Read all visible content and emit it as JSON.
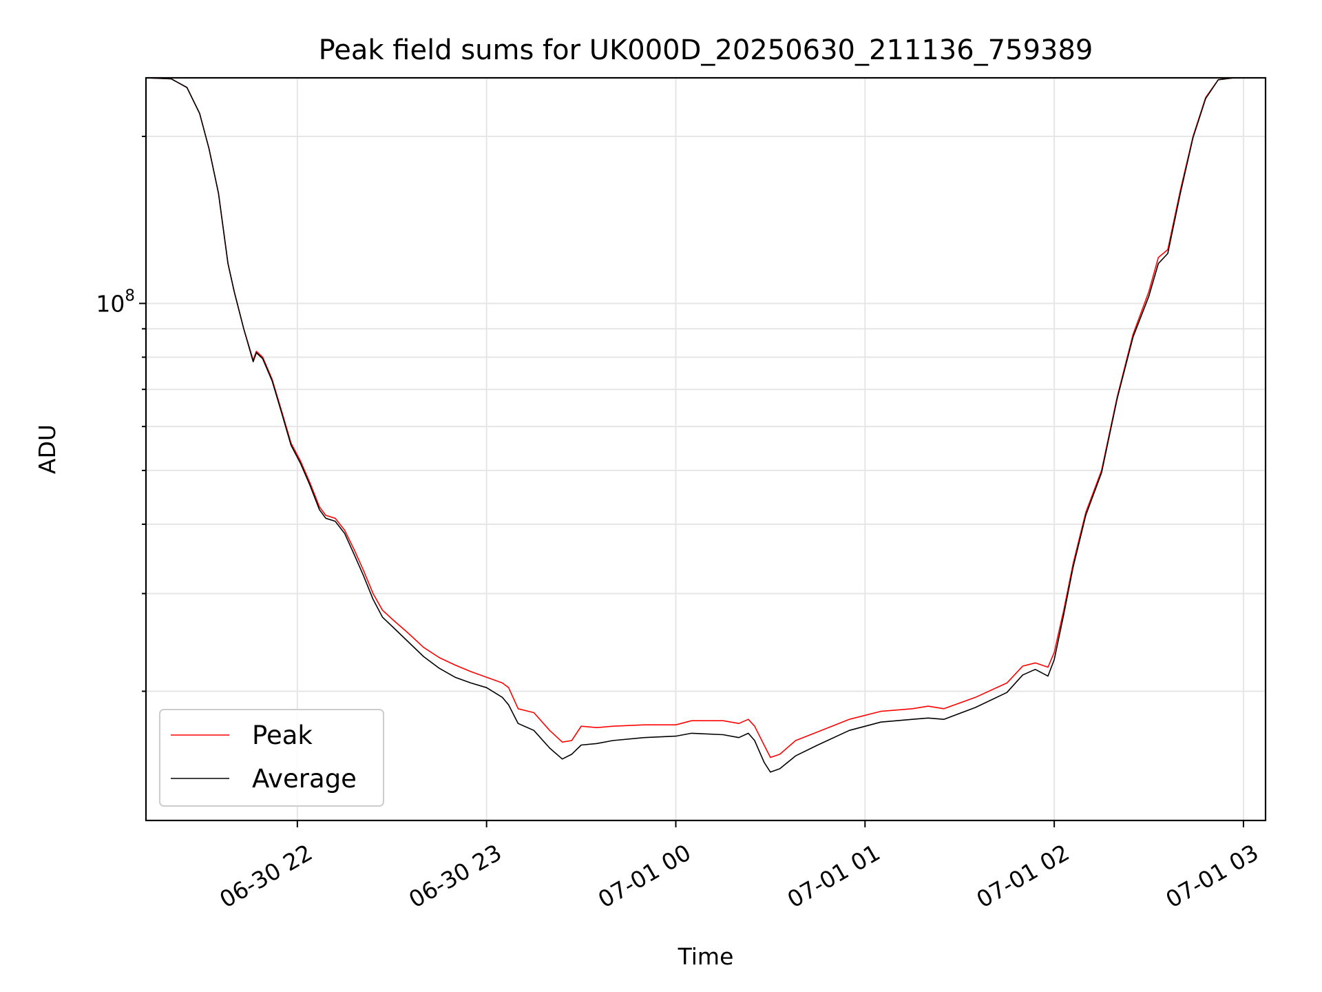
{
  "chart_data": {
    "type": "line",
    "title": "Peak field sums for UK000D_20250630_211136_759389",
    "xlabel": "Time",
    "ylabel": "ADU",
    "x_axis_type": "datetime",
    "xlim": [
      "2025-06-30 21:12",
      "2025-07-01 03:07"
    ],
    "ylim": [
      11700000,
      255000000
    ],
    "y_scale": "log",
    "x_ticks": [
      {
        "t": "2025-06-30 22:00",
        "label": "06-30 22"
      },
      {
        "t": "2025-06-30 23:00",
        "label": "06-30 23"
      },
      {
        "t": "2025-07-01 00:00",
        "label": "07-01 00"
      },
      {
        "t": "2025-07-01 01:00",
        "label": "07-01 01"
      },
      {
        "t": "2025-07-01 02:00",
        "label": "07-01 02"
      },
      {
        "t": "2025-07-01 03:00",
        "label": "07-01 03"
      }
    ],
    "y_major_ticks": [
      {
        "value": 100000000,
        "base": "10",
        "exp": "8"
      }
    ],
    "y_minor_ticks": [
      20000000,
      30000000,
      40000000,
      50000000,
      60000000,
      70000000,
      80000000,
      90000000,
      200000000
    ],
    "grid": true,
    "legend_position": "lower-left",
    "series": [
      {
        "name": "Peak",
        "color": "#ff0000",
        "points": [
          [
            "2025-06-30 21:12",
            255000000
          ],
          [
            "2025-06-30 21:20",
            254000000
          ],
          [
            "2025-06-30 21:25",
            245000000
          ],
          [
            "2025-06-30 21:29",
            220000000
          ],
          [
            "2025-06-30 21:32",
            190000000
          ],
          [
            "2025-06-30 21:35",
            158000000
          ],
          [
            "2025-06-30 21:38",
            118000000
          ],
          [
            "2025-06-30 21:40",
            105000000
          ],
          [
            "2025-06-30 21:43",
            90000000
          ],
          [
            "2025-06-30 21:46",
            79000000
          ],
          [
            "2025-06-30 21:47",
            82000000
          ],
          [
            "2025-06-30 21:49",
            80000000
          ],
          [
            "2025-06-30 21:52",
            73000000
          ],
          [
            "2025-06-30 21:55",
            64000000
          ],
          [
            "2025-06-30 21:58",
            56000000
          ],
          [
            "2025-06-30 22:01",
            52000000
          ],
          [
            "2025-06-30 22:04",
            47500000
          ],
          [
            "2025-06-30 22:07",
            43000000
          ],
          [
            "2025-06-30 22:09",
            41500000
          ],
          [
            "2025-06-30 22:12",
            41000000
          ],
          [
            "2025-06-30 22:15",
            39000000
          ],
          [
            "2025-06-30 22:18",
            36000000
          ],
          [
            "2025-06-30 22:21",
            33000000
          ],
          [
            "2025-06-30 22:24",
            30000000
          ],
          [
            "2025-06-30 22:27",
            28000000
          ],
          [
            "2025-06-30 22:30",
            27000000
          ],
          [
            "2025-06-30 22:35",
            25500000
          ],
          [
            "2025-06-30 22:40",
            24000000
          ],
          [
            "2025-06-30 22:45",
            23000000
          ],
          [
            "2025-06-30 22:50",
            22300000
          ],
          [
            "2025-06-30 22:55",
            21700000
          ],
          [
            "2025-06-30 23:00",
            21200000
          ],
          [
            "2025-06-30 23:05",
            20700000
          ],
          [
            "2025-06-30 23:07",
            20300000
          ],
          [
            "2025-06-30 23:10",
            18600000
          ],
          [
            "2025-06-30 23:15",
            18300000
          ],
          [
            "2025-06-30 23:20",
            17000000
          ],
          [
            "2025-06-30 23:24",
            16200000
          ],
          [
            "2025-06-30 23:27",
            16300000
          ],
          [
            "2025-06-30 23:30",
            17300000
          ],
          [
            "2025-06-30 23:35",
            17200000
          ],
          [
            "2025-06-30 23:40",
            17300000
          ],
          [
            "2025-06-30 23:50",
            17400000
          ],
          [
            "2025-07-01 00:00",
            17400000
          ],
          [
            "2025-07-01 00:05",
            17700000
          ],
          [
            "2025-07-01 00:15",
            17700000
          ],
          [
            "2025-07-01 00:20",
            17500000
          ],
          [
            "2025-07-01 00:23",
            17800000
          ],
          [
            "2025-07-01 00:25",
            17300000
          ],
          [
            "2025-07-01 00:28",
            16000000
          ],
          [
            "2025-07-01 00:30",
            15200000
          ],
          [
            "2025-07-01 00:33",
            15400000
          ],
          [
            "2025-07-01 00:38",
            16300000
          ],
          [
            "2025-07-01 00:45",
            16900000
          ],
          [
            "2025-07-01 00:55",
            17800000
          ],
          [
            "2025-07-01 01:05",
            18400000
          ],
          [
            "2025-07-01 01:15",
            18600000
          ],
          [
            "2025-07-01 01:20",
            18800000
          ],
          [
            "2025-07-01 01:25",
            18600000
          ],
          [
            "2025-07-01 01:35",
            19500000
          ],
          [
            "2025-07-01 01:45",
            20700000
          ],
          [
            "2025-07-01 01:50",
            22200000
          ],
          [
            "2025-07-01 01:54",
            22500000
          ],
          [
            "2025-07-01 01:58",
            22100000
          ],
          [
            "2025-07-01 02:00",
            23500000
          ],
          [
            "2025-07-01 02:03",
            28000000
          ],
          [
            "2025-07-01 02:06",
            34000000
          ],
          [
            "2025-07-01 02:10",
            42000000
          ],
          [
            "2025-07-01 02:15",
            50000000
          ],
          [
            "2025-07-01 02:20",
            68000000
          ],
          [
            "2025-07-01 02:25",
            88000000
          ],
          [
            "2025-07-01 02:30",
            105000000
          ],
          [
            "2025-07-01 02:33",
            121000000
          ],
          [
            "2025-07-01 02:36",
            125000000
          ],
          [
            "2025-07-01 02:40",
            160000000
          ],
          [
            "2025-07-01 02:44",
            200000000
          ],
          [
            "2025-07-01 02:48",
            235000000
          ],
          [
            "2025-07-01 02:52",
            253000000
          ],
          [
            "2025-07-01 02:57",
            255000000
          ],
          [
            "2025-07-01 03:07",
            255000000
          ]
        ]
      },
      {
        "name": "Average",
        "color": "#000000",
        "points": [
          [
            "2025-06-30 21:12",
            255000000
          ],
          [
            "2025-06-30 21:20",
            254000000
          ],
          [
            "2025-06-30 21:25",
            245000000
          ],
          [
            "2025-06-30 21:29",
            220000000
          ],
          [
            "2025-06-30 21:32",
            190000000
          ],
          [
            "2025-06-30 21:35",
            158000000
          ],
          [
            "2025-06-30 21:38",
            118000000
          ],
          [
            "2025-06-30 21:40",
            105000000
          ],
          [
            "2025-06-30 21:43",
            90000000
          ],
          [
            "2025-06-30 21:46",
            78500000
          ],
          [
            "2025-06-30 21:47",
            81500000
          ],
          [
            "2025-06-30 21:49",
            79500000
          ],
          [
            "2025-06-30 21:52",
            72500000
          ],
          [
            "2025-06-30 21:55",
            63500000
          ],
          [
            "2025-06-30 21:58",
            55500000
          ],
          [
            "2025-06-30 22:01",
            51500000
          ],
          [
            "2025-06-30 22:04",
            47000000
          ],
          [
            "2025-06-30 22:07",
            42500000
          ],
          [
            "2025-06-30 22:09",
            41000000
          ],
          [
            "2025-06-30 22:12",
            40500000
          ],
          [
            "2025-06-30 22:15",
            38500000
          ],
          [
            "2025-06-30 22:18",
            35300000
          ],
          [
            "2025-06-30 22:21",
            32300000
          ],
          [
            "2025-06-30 22:24",
            29300000
          ],
          [
            "2025-06-30 22:27",
            27200000
          ],
          [
            "2025-06-30 22:30",
            26200000
          ],
          [
            "2025-06-30 22:35",
            24600000
          ],
          [
            "2025-06-30 22:40",
            23100000
          ],
          [
            "2025-06-30 22:45",
            22000000
          ],
          [
            "2025-06-30 22:50",
            21200000
          ],
          [
            "2025-06-30 22:55",
            20700000
          ],
          [
            "2025-06-30 23:00",
            20300000
          ],
          [
            "2025-06-30 23:05",
            19500000
          ],
          [
            "2025-06-30 23:07",
            18900000
          ],
          [
            "2025-06-30 23:10",
            17500000
          ],
          [
            "2025-06-30 23:15",
            17000000
          ],
          [
            "2025-06-30 23:20",
            15800000
          ],
          [
            "2025-06-30 23:24",
            15100000
          ],
          [
            "2025-06-30 23:27",
            15400000
          ],
          [
            "2025-06-30 23:30",
            16000000
          ],
          [
            "2025-06-30 23:35",
            16100000
          ],
          [
            "2025-06-30 23:40",
            16300000
          ],
          [
            "2025-06-30 23:50",
            16500000
          ],
          [
            "2025-07-01 00:00",
            16600000
          ],
          [
            "2025-07-01 00:05",
            16800000
          ],
          [
            "2025-07-01 00:15",
            16700000
          ],
          [
            "2025-07-01 00:20",
            16500000
          ],
          [
            "2025-07-01 00:23",
            16800000
          ],
          [
            "2025-07-01 00:25",
            16300000
          ],
          [
            "2025-07-01 00:28",
            14900000
          ],
          [
            "2025-07-01 00:30",
            14300000
          ],
          [
            "2025-07-01 00:33",
            14500000
          ],
          [
            "2025-07-01 00:38",
            15300000
          ],
          [
            "2025-07-01 00:45",
            16000000
          ],
          [
            "2025-07-01 00:55",
            17000000
          ],
          [
            "2025-07-01 01:05",
            17600000
          ],
          [
            "2025-07-01 01:15",
            17800000
          ],
          [
            "2025-07-01 01:20",
            17900000
          ],
          [
            "2025-07-01 01:25",
            17800000
          ],
          [
            "2025-07-01 01:35",
            18700000
          ],
          [
            "2025-07-01 01:45",
            19900000
          ],
          [
            "2025-07-01 01:50",
            21400000
          ],
          [
            "2025-07-01 01:54",
            21900000
          ],
          [
            "2025-07-01 01:58",
            21300000
          ],
          [
            "2025-07-01 02:00",
            22800000
          ],
          [
            "2025-07-01 02:03",
            27500000
          ],
          [
            "2025-07-01 02:06",
            33500000
          ],
          [
            "2025-07-01 02:10",
            41500000
          ],
          [
            "2025-07-01 02:15",
            49500000
          ],
          [
            "2025-07-01 02:20",
            67500000
          ],
          [
            "2025-07-01 02:25",
            87000000
          ],
          [
            "2025-07-01 02:30",
            103000000
          ],
          [
            "2025-07-01 02:33",
            118000000
          ],
          [
            "2025-07-01 02:36",
            123000000
          ],
          [
            "2025-07-01 02:40",
            158000000
          ],
          [
            "2025-07-01 02:44",
            199000000
          ],
          [
            "2025-07-01 02:48",
            234000000
          ],
          [
            "2025-07-01 02:52",
            253000000
          ],
          [
            "2025-07-01 02:57",
            255000000
          ],
          [
            "2025-07-01 03:07",
            255000000
          ]
        ]
      }
    ]
  }
}
